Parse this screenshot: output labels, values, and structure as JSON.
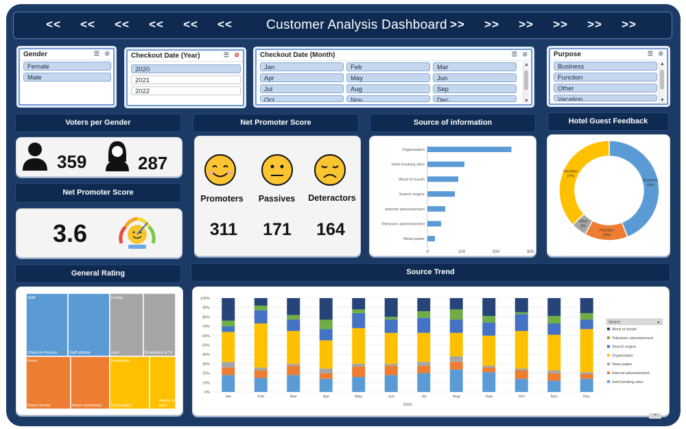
{
  "header": {
    "title": "Customer Analysis Dashboard",
    "left_arrows": [
      "<<",
      "<<",
      "<<",
      "<<",
      "<<",
      "<<"
    ],
    "right_arrows": [
      ">>",
      ">>",
      ">>",
      ">>",
      ">>",
      ">>"
    ]
  },
  "slicers": {
    "gender": {
      "title": "Gender",
      "items": [
        "Female",
        "Male"
      ]
    },
    "year": {
      "title": "Checkout Date (Year)",
      "items": [
        "2020",
        "2021",
        "2022"
      ]
    },
    "month": {
      "title": "Checkout Date (Month)",
      "items": [
        "Jan",
        "Feb",
        "Mar",
        "Apr",
        "May",
        "Jun",
        "Jul",
        "Aug",
        "Sep",
        "Oct",
        "Nov",
        "Dec"
      ]
    },
    "purpose": {
      "title": "Purpose",
      "items": [
        "Business",
        "Function",
        "Other",
        "Vacation"
      ]
    }
  },
  "section_labels": {
    "voters_per_gender": "Voters per Gender",
    "nps_top": "Net Promoter Score",
    "source_info": "Source of information",
    "hotel_feedback": "Hotel Guest Feedback",
    "nps_left": "Net Promoter Score",
    "general_rating": "General Rating",
    "source_trend": "Source Trend"
  },
  "voters": {
    "male": "359",
    "female": "287"
  },
  "nps_score": "3.6",
  "nps": {
    "promoters_label": "Promoters",
    "promoters": "311",
    "passives_label": "Passives",
    "passives": "171",
    "detractors_label": "Deteractors",
    "detractors": "164"
  },
  "colors": {
    "blue": "#5b9bd5",
    "orange": "#ed7d31",
    "gray": "#a5a5a5",
    "yellow": "#ffc000",
    "green": "#70ad47",
    "navy": "#264478",
    "dark": "#0f2a50"
  },
  "chart_data": [
    {
      "type": "bar",
      "orientation": "horizontal",
      "categories": [
        "Organization",
        "hotel booking sites",
        "Word of mouth",
        "Search engine",
        "Internet advertisement",
        "Television advertisement",
        "News paper"
      ],
      "values": [
        245,
        108,
        90,
        80,
        52,
        40,
        22
      ],
      "xlim": [
        0,
        300
      ],
      "xticks": [
        "0",
        "100",
        "200",
        "300"
      ]
    },
    {
      "type": "pie",
      "donut": true,
      "labels": [
        "Business",
        "Function",
        "Other",
        "Vacation"
      ],
      "values": [
        44,
        14,
        5,
        37
      ],
      "display_labels": [
        "Business\n44%",
        "Function\n14%",
        "Other\n5%",
        "Vacation\n37%"
      ],
      "colors": [
        "#5b9bd5",
        "#ed7d31",
        "#a5a5a5",
        "#ffc000"
      ]
    },
    {
      "type": "heatmap",
      "subtype": "treemap",
      "groups": [
        {
          "name": "Staff",
          "color": "#5b9bd5",
          "items": [
            "Check-in Process",
            "Staff attitude"
          ]
        },
        {
          "name": "Facility",
          "color": "#a5a5a5",
          "items": [
            "Gym",
            "Broadband & TV"
          ]
        },
        {
          "name": "Room",
          "color": "#ed7d31",
          "items": [
            "Room service",
            "Room cleanliness"
          ]
        },
        {
          "name": "Restaurant",
          "color": "#ffc000",
          "items": [
            "Food quality",
            "Variety of food"
          ]
        }
      ]
    },
    {
      "type": "bar",
      "stacked": "percent",
      "categories": [
        "Jan",
        "Feb",
        "Mar",
        "Apr",
        "May",
        "Jun",
        "Jul",
        "Aug",
        "Sep",
        "Oct",
        "Nov",
        "Dec"
      ],
      "xlabel": "2020",
      "yticks": [
        "0%",
        "10%",
        "20%",
        "30%",
        "40%",
        "50%",
        "60%",
        "70%",
        "80%",
        "90%",
        "100%"
      ],
      "legend_title": "Source",
      "legend": [
        "Word of mouth",
        "Television advertisement",
        "Search engine",
        "Organization",
        "News paper",
        "Internet advertisement",
        "hotel booking sites"
      ],
      "series": [
        {
          "name": "hotel booking sites",
          "color": "#5b9bd5",
          "values": [
            18,
            15,
            18,
            14,
            16,
            18,
            20,
            24,
            21,
            14,
            12,
            14
          ]
        },
        {
          "name": "Internet advertisement",
          "color": "#ed7d31",
          "values": [
            8,
            8,
            10,
            6,
            11,
            10,
            8,
            8,
            5,
            9,
            8,
            5
          ]
        },
        {
          "name": "News paper",
          "color": "#a5a5a5",
          "values": [
            6,
            3,
            2,
            5,
            3,
            2,
            4,
            6,
            2,
            2,
            3,
            2
          ]
        },
        {
          "name": "Organization",
          "color": "#ffc000",
          "values": [
            32,
            47,
            35,
            30,
            38,
            33,
            31,
            25,
            32,
            40,
            38,
            46
          ]
        },
        {
          "name": "Search engine",
          "color": "#4472c4",
          "values": [
            6,
            14,
            12,
            12,
            16,
            14,
            16,
            14,
            14,
            18,
            12,
            10
          ]
        },
        {
          "name": "Television advertisement",
          "color": "#70ad47",
          "values": [
            6,
            5,
            5,
            10,
            4,
            3,
            7,
            11,
            7,
            2,
            8,
            7
          ]
        },
        {
          "name": "Word of mouth",
          "color": "#264478",
          "values": [
            24,
            8,
            18,
            23,
            12,
            20,
            14,
            12,
            19,
            15,
            19,
            16
          ]
        }
      ]
    }
  ]
}
